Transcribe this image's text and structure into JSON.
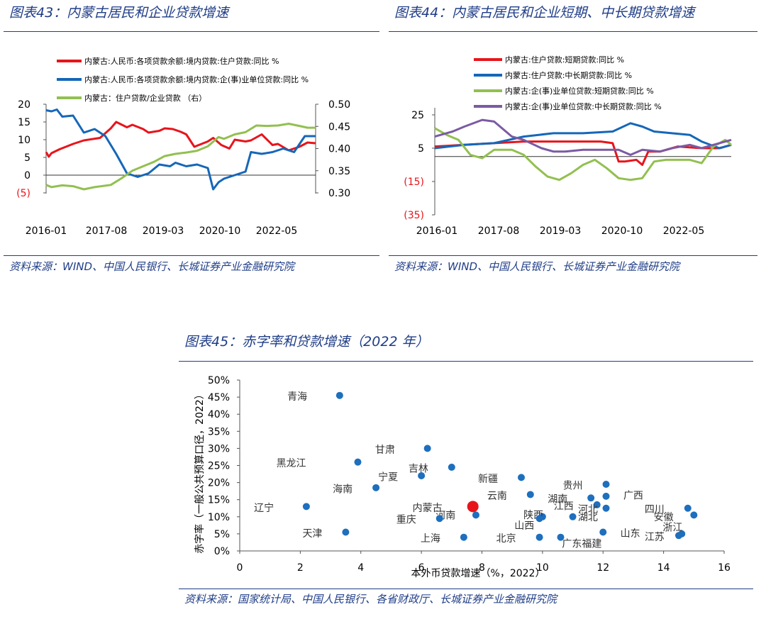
{
  "fig43": {
    "title": "图表43：内蒙古居民和企业贷款增速",
    "source": "资料来源：WIND、中国人民银行、长城证券产业金融研究院",
    "chart_data": {
      "type": "line",
      "legend_position": "top",
      "x_ticks": [
        "2016-01",
        "2017-08",
        "2019-03",
        "2020-10",
        "2022-05"
      ],
      "y_left_ticks": [
        "20",
        "15",
        "10",
        "5",
        "0",
        "(5)"
      ],
      "y_left_range": [
        -5,
        20
      ],
      "y_right_ticks": [
        "0.50",
        "0.45",
        "0.40",
        "0.35",
        "0.30"
      ],
      "y_right_range": [
        0.3,
        0.5
      ],
      "series": [
        {
          "name": "内蒙古:人民币:各项贷款余额:境内贷款:住户贷款:同比 %",
          "color": "#e8141b",
          "axis": "left",
          "t": [
            0,
            0.01,
            0.02,
            0.05,
            0.1,
            0.14,
            0.2,
            0.24,
            0.26,
            0.3,
            0.32,
            0.36,
            0.38,
            0.42,
            0.44,
            0.47,
            0.5,
            0.52,
            0.55,
            0.6,
            0.62,
            0.65,
            0.68,
            0.7,
            0.74,
            0.76,
            0.8,
            0.84,
            0.86,
            0.9,
            0.94,
            0.97,
            1.0
          ],
          "values": [
            6.5,
            5.2,
            6.2,
            7.3,
            8.8,
            9.8,
            10.5,
            13.2,
            15.0,
            13.5,
            14.2,
            13.0,
            12.0,
            12.5,
            13.2,
            13.0,
            12.2,
            11.5,
            8.0,
            9.5,
            10.5,
            8.5,
            7.5,
            10.0,
            9.5,
            9.8,
            11.5,
            8.5,
            8.8,
            7.0,
            8.0,
            9.2,
            9.0
          ]
        },
        {
          "name": "内蒙古:人民币:各项贷款余额:境内贷款:企(事)业单位贷款:同比 %",
          "color": "#1567b8",
          "axis": "left",
          "t": [
            0,
            0.02,
            0.04,
            0.06,
            0.1,
            0.14,
            0.18,
            0.22,
            0.26,
            0.3,
            0.34,
            0.38,
            0.42,
            0.46,
            0.48,
            0.52,
            0.56,
            0.6,
            0.62,
            0.64,
            0.66,
            0.7,
            0.74,
            0.76,
            0.8,
            0.84,
            0.88,
            0.92,
            0.96,
            1.0
          ],
          "values": [
            18.3,
            18.0,
            18.5,
            16.5,
            16.8,
            12.0,
            13.0,
            11.0,
            6.0,
            0.5,
            -0.5,
            0.5,
            3.0,
            2.5,
            3.5,
            2.5,
            3.0,
            2.0,
            -4.0,
            -2.0,
            -1.0,
            0.0,
            1.0,
            6.5,
            6.0,
            6.5,
            7.5,
            6.5,
            11.0,
            11.0
          ]
        },
        {
          "name": "内蒙古：住户贷款/企业贷款 （右）",
          "color": "#92c050",
          "axis": "right",
          "t": [
            0,
            0.02,
            0.06,
            0.1,
            0.14,
            0.18,
            0.24,
            0.28,
            0.32,
            0.36,
            0.4,
            0.44,
            0.48,
            0.52,
            0.56,
            0.6,
            0.64,
            0.66,
            0.7,
            0.74,
            0.78,
            0.82,
            0.86,
            0.9,
            0.94,
            0.97,
            1.0
          ],
          "values": [
            0.318,
            0.313,
            0.317,
            0.315,
            0.308,
            0.313,
            0.318,
            0.333,
            0.35,
            0.36,
            0.37,
            0.383,
            0.388,
            0.391,
            0.395,
            0.405,
            0.426,
            0.422,
            0.432,
            0.437,
            0.452,
            0.451,
            0.452,
            0.456,
            0.451,
            0.447,
            0.447
          ]
        }
      ]
    }
  },
  "fig44": {
    "title": "图表44：内蒙古居民和企业短期、中长期贷款增速",
    "source": "资料来源：WIND、中国人民银行、长城证券产业金融研究院",
    "chart_data": {
      "type": "line",
      "legend_position": "top",
      "x_ticks": [
        "2016-01",
        "2017-08",
        "2019-03",
        "2020-10",
        "2022-05"
      ],
      "y_ticks": [
        "25",
        "5",
        "(15)",
        "(35)"
      ],
      "y_range": [
        -35,
        25
      ],
      "baseline": 0,
      "series": [
        {
          "name": "内蒙古:住户贷款:短期贷款:同比 %",
          "color": "#e8141b",
          "t": [
            0,
            0.1,
            0.2,
            0.3,
            0.4,
            0.5,
            0.56,
            0.6,
            0.62,
            0.64,
            0.68,
            0.7,
            0.72,
            0.76,
            0.8,
            0.82,
            0.9,
            0.96,
            1.0
          ],
          "values": [
            6,
            7,
            8,
            9,
            9,
            9,
            9,
            8,
            -3,
            -3,
            -2,
            -5,
            3,
            3,
            5,
            6,
            5,
            5,
            7
          ]
        },
        {
          "name": "内蒙古:住户贷款:中长期贷款:同比 %",
          "color": "#1567b8",
          "t": [
            0,
            0.1,
            0.2,
            0.3,
            0.4,
            0.5,
            0.6,
            0.66,
            0.7,
            0.74,
            0.8,
            0.86,
            0.9,
            0.96,
            1.0
          ],
          "values": [
            5,
            7,
            8,
            12,
            14,
            14,
            15,
            20,
            18,
            15,
            14,
            13,
            9,
            5,
            7
          ]
        },
        {
          "name": "内蒙古:企(事)业单位贷款:短期贷款:同比 %",
          "color": "#92c050",
          "t": [
            0,
            0.04,
            0.08,
            0.12,
            0.16,
            0.2,
            0.26,
            0.3,
            0.34,
            0.38,
            0.42,
            0.46,
            0.5,
            0.54,
            0.58,
            0.62,
            0.66,
            0.7,
            0.74,
            0.78,
            0.82,
            0.86,
            0.9,
            0.94,
            0.98,
            1.0
          ],
          "values": [
            17,
            13,
            10,
            1,
            -1,
            4,
            4,
            1,
            -6,
            -12,
            -14,
            -10,
            -5,
            -2,
            -7,
            -13,
            -14,
            -13,
            -3,
            -2,
            -2,
            -2,
            -4,
            6,
            10,
            7
          ]
        },
        {
          "name": "内蒙古:企(事)业单位贷款:中长期贷款:同比 %",
          "color": "#7c5aa3",
          "t": [
            0,
            0.06,
            0.1,
            0.16,
            0.2,
            0.26,
            0.3,
            0.36,
            0.4,
            0.44,
            0.5,
            0.56,
            0.62,
            0.66,
            0.7,
            0.76,
            0.8,
            0.86,
            0.9,
            0.96,
            1.0
          ],
          "values": [
            12,
            15,
            18,
            22,
            21,
            12,
            10,
            5,
            3,
            3,
            4,
            4,
            4,
            1,
            4,
            3,
            5,
            7,
            5,
            8,
            10
          ]
        }
      ]
    }
  },
  "fig45": {
    "title": "图表45：赤字率和贷款增速（2022 年）",
    "source": "资料来源：国家统计局、中国人民银行、各省财政厅、长城证券产业金融研究院",
    "chart_data": {
      "type": "scatter",
      "xlabel": "本外币贷款增速（%，2022）",
      "ylabel": "赤字率（一般公共预算口径，2022）",
      "x_range": [
        0,
        16
      ],
      "x_ticks": [
        "0",
        "2",
        "4",
        "6",
        "8",
        "10",
        "12",
        "14",
        "16"
      ],
      "y_range": [
        0,
        50
      ],
      "y_ticks": [
        "50%",
        "45%",
        "40%",
        "35%",
        "30%",
        "25%",
        "20%",
        "15%",
        "10%",
        "5%",
        "0%"
      ],
      "highlight_color": "#e8141b",
      "point_color": "#1e6fbd",
      "points": [
        {
          "name": "青海",
          "x": 3.3,
          "y": 45.5,
          "lx": -1.4,
          "ly": -0.3
        },
        {
          "name": "甘肃",
          "x": 6.2,
          "y": 30.0,
          "lx": -1.4,
          "ly": -0.3
        },
        {
          "name": "黑龙江",
          "x": 3.9,
          "y": 26.0,
          "lx": -2.2,
          "ly": -0.3
        },
        {
          "name": "吉林",
          "x": 7.0,
          "y": 24.5,
          "lx": -1.1,
          "ly": -0.3
        },
        {
          "name": "宁夏",
          "x": 6.0,
          "y": 22.0,
          "lx": -1.1,
          "ly": -0.3
        },
        {
          "name": "新疆",
          "x": 9.3,
          "y": 21.5,
          "lx": -1.1,
          "ly": -0.3
        },
        {
          "name": "海南",
          "x": 4.5,
          "y": 18.5,
          "lx": -1.1,
          "ly": -0.3
        },
        {
          "name": "贵州",
          "x": 12.1,
          "y": 19.5,
          "lx": -1.1,
          "ly": -0.3
        },
        {
          "name": "云南",
          "x": 9.6,
          "y": 16.5,
          "lx": -1.1,
          "ly": -0.3
        },
        {
          "name": "湖南",
          "x": 11.6,
          "y": 15.5,
          "lx": -1.1,
          "ly": -0.3
        },
        {
          "name": "广西",
          "x": 12.1,
          "y": 16.0,
          "lx": 0.9,
          "ly": 0.3
        },
        {
          "name": "江西",
          "x": 11.8,
          "y": 13.5,
          "lx": -1.1,
          "ly": -0.3
        },
        {
          "name": "河北",
          "x": 12.1,
          "y": 12.5,
          "lx": -0.6,
          "ly": -0.3
        },
        {
          "name": "辽宁",
          "x": 2.2,
          "y": 13.0,
          "lx": -1.4,
          "ly": -0.3
        },
        {
          "name": "内蒙古",
          "x": 7.7,
          "y": 13.0,
          "lx": -1.5,
          "ly": -0.3
        },
        {
          "name": "河南",
          "x": 7.8,
          "y": 10.5,
          "lx": -1.0,
          "ly": 0.0
        },
        {
          "name": "重庆",
          "x": 6.6,
          "y": 9.5,
          "lx": -1.1,
          "ly": -0.3
        },
        {
          "name": "陕西",
          "x": 10.0,
          "y": 10.0,
          "lx": -0.3,
          "ly": 0.6
        },
        {
          "name": "湖北",
          "x": 11.0,
          "y": 10.0,
          "lx": 0.5,
          "ly": 0.0
        },
        {
          "name": "山西",
          "x": 9.9,
          "y": 9.5,
          "lx": -0.5,
          "ly": -2.0
        },
        {
          "name": "四川",
          "x": 14.8,
          "y": 12.5,
          "lx": -1.1,
          "ly": -0.3
        },
        {
          "name": "天津",
          "x": 3.5,
          "y": 5.5,
          "lx": -1.1,
          "ly": -0.3
        },
        {
          "name": "上海",
          "x": 7.4,
          "y": 4.0,
          "lx": -1.1,
          "ly": -0.3
        },
        {
          "name": "北京",
          "x": 9.9,
          "y": 4.0,
          "lx": -1.1,
          "ly": -0.3
        },
        {
          "name": "广东福建",
          "x": 10.6,
          "y": 4.0,
          "lx": 0.7,
          "ly": -1.8
        },
        {
          "name": "山东",
          "x": 12.0,
          "y": 5.5,
          "lx": 0.9,
          "ly": -0.3
        },
        {
          "name": "安徽",
          "x": 15.0,
          "y": 10.5,
          "lx": -1.0,
          "ly": -0.5
        },
        {
          "name": "浙江",
          "x": 14.6,
          "y": 5.0,
          "lx": -0.3,
          "ly": 1.9
        },
        {
          "name": "江苏",
          "x": 14.5,
          "y": 4.5,
          "lx": -0.8,
          "ly": -0.3
        }
      ]
    }
  }
}
